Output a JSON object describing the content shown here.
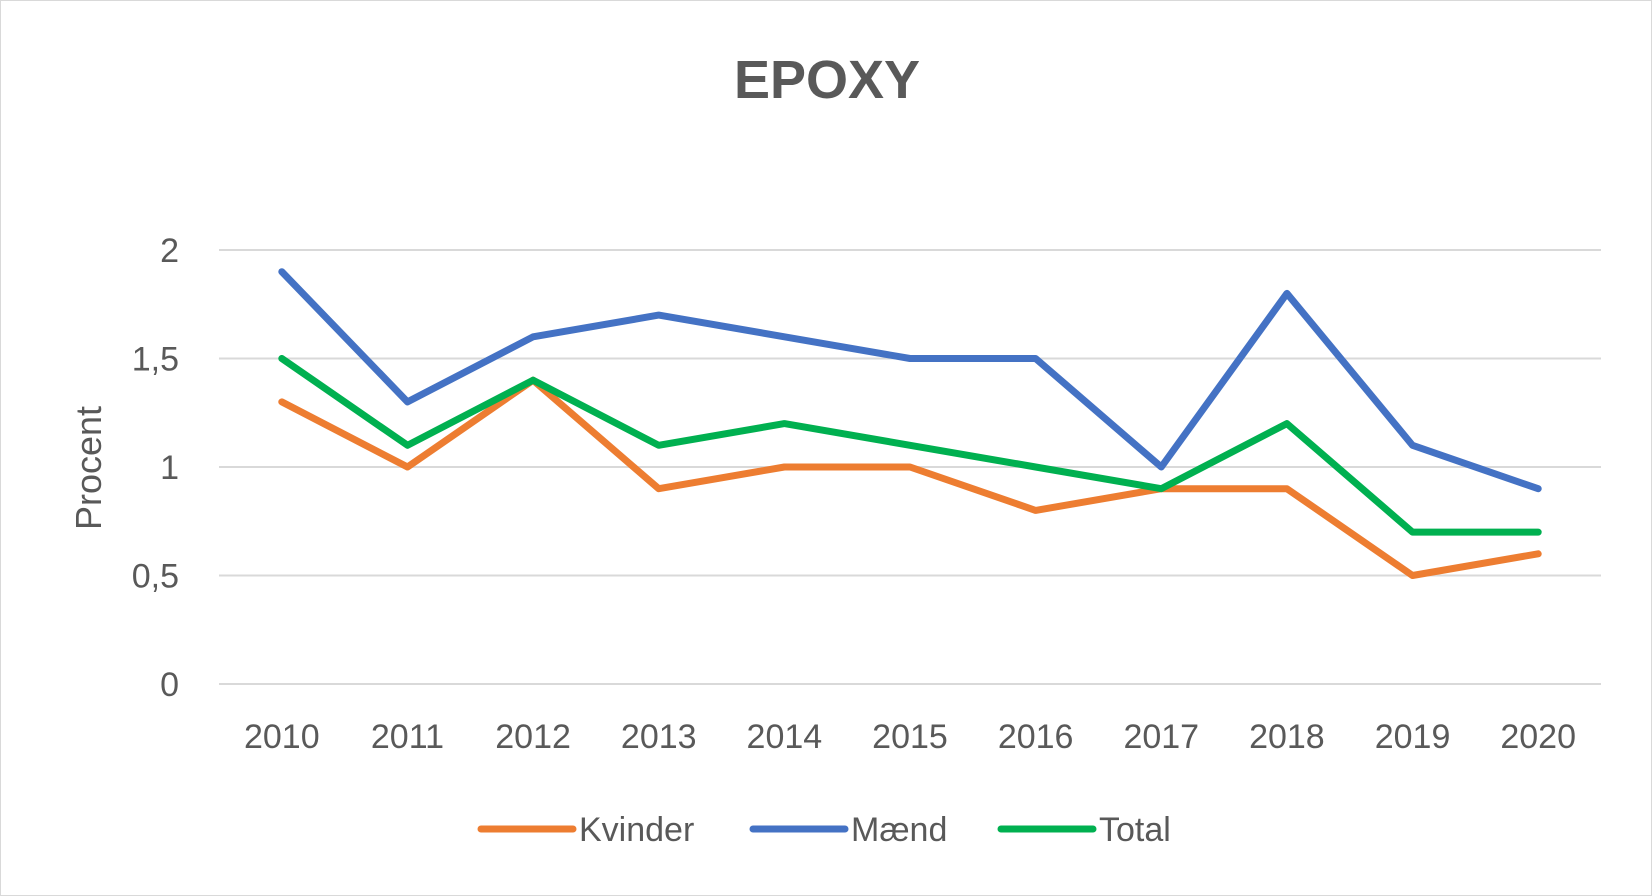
{
  "chart_data": {
    "type": "line",
    "title": "EPOXY",
    "xlabel": "",
    "ylabel": "Procent",
    "categories": [
      "2010",
      "2011",
      "2012",
      "2013",
      "2014",
      "2015",
      "2016",
      "2017",
      "2018",
      "2019",
      "2020"
    ],
    "ylim": [
      0,
      2
    ],
    "yticks": [
      0,
      0.5,
      1,
      1.5,
      2
    ],
    "ytick_labels": [
      "0",
      "0,5",
      "1",
      "1,5",
      "2"
    ],
    "grid": true,
    "legend_position": "bottom",
    "series": [
      {
        "name": "Kvinder",
        "color": "#ed7d31",
        "values": [
          1.3,
          1.0,
          1.4,
          0.9,
          1.0,
          1.0,
          0.8,
          0.9,
          0.9,
          0.5,
          0.6
        ]
      },
      {
        "name": "Mænd",
        "color": "#4472c4",
        "values": [
          1.9,
          1.3,
          1.6,
          1.7,
          1.6,
          1.5,
          1.5,
          1.0,
          1.8,
          1.1,
          0.9
        ]
      },
      {
        "name": "Total",
        "color": "#00b050",
        "values": [
          1.5,
          1.1,
          1.4,
          1.1,
          1.2,
          1.1,
          1.0,
          0.9,
          1.2,
          0.7,
          0.7
        ]
      }
    ]
  }
}
